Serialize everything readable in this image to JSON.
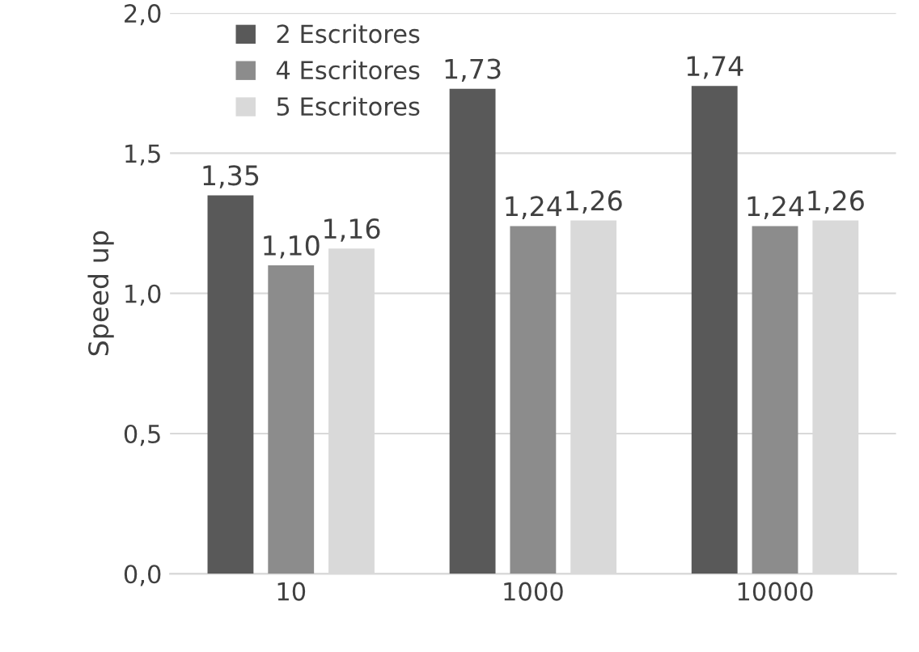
{
  "chart_data": {
    "type": "bar",
    "ylabel": "Speed up",
    "categories": [
      "10",
      "1000",
      "10000"
    ],
    "series": [
      {
        "name": "2 Escritores",
        "color": "#595959",
        "values": [
          1.35,
          1.73,
          1.74
        ],
        "value_labels": [
          "1,35",
          "1,73",
          "1,74"
        ]
      },
      {
        "name": "4 Escritores",
        "color": "#8c8c8c",
        "values": [
          1.1,
          1.24,
          1.24
        ],
        "value_labels": [
          "1,10",
          "1,24",
          "1,24"
        ]
      },
      {
        "name": "5 Escritores",
        "color": "#d9d9d9",
        "values": [
          1.16,
          1.26,
          1.26
        ],
        "value_labels": [
          "1,16",
          "1,26",
          "1,26"
        ]
      }
    ],
    "ylim": [
      0,
      2
    ],
    "yticks": [
      {
        "value": 0,
        "label": "0,0"
      },
      {
        "value": 0.5,
        "label": "0,5"
      },
      {
        "value": 1,
        "label": "1,0"
      },
      {
        "value": 1.5,
        "label": "1,5"
      },
      {
        "value": 2,
        "label": "2,0"
      }
    ],
    "grid": "y",
    "legend": "top left"
  }
}
